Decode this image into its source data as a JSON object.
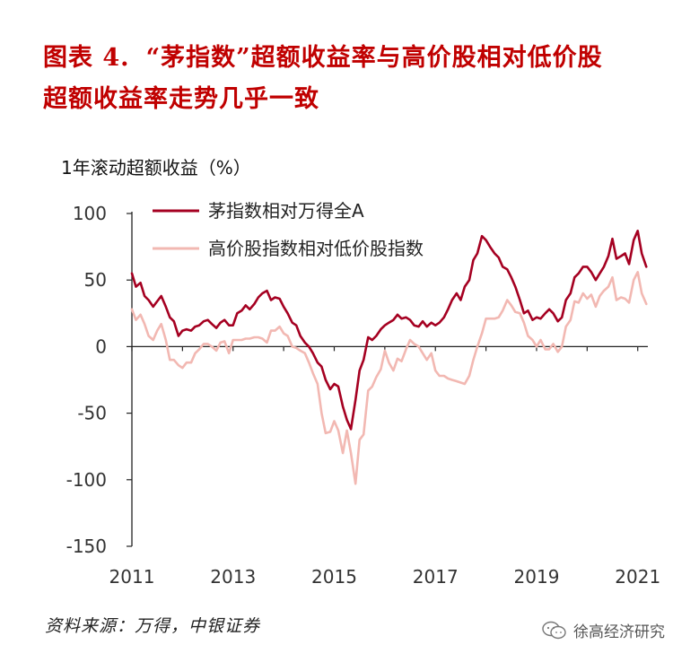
{
  "title": {
    "figure_no": "图表 4.",
    "line1": "“茅指数”超额收益率与高价股相对低价股",
    "line2": "超额收益率走势几乎一致"
  },
  "footer": {
    "source": "资料来源：万得，中银证券",
    "watermark": "徐高经济研究",
    "watermark_icon": "wechat-icon"
  },
  "chart_data": {
    "type": "line",
    "ylabel": "1年滚动超额收益（%）",
    "ylim": [
      -150,
      100
    ],
    "yticks": [
      100,
      50,
      0,
      -50,
      -100,
      -150
    ],
    "xlim": [
      2011,
      2021.2
    ],
    "xticks": [
      2011,
      2013,
      2015,
      2017,
      2019,
      2021
    ],
    "grid": false,
    "legend_position": "top-left",
    "series": [
      {
        "name": "茅指数相对万得全A",
        "color": "#a50021",
        "points": [
          [
            2011.0,
            55
          ],
          [
            2011.08,
            45
          ],
          [
            2011.17,
            48
          ],
          [
            2011.25,
            38
          ],
          [
            2011.33,
            35
          ],
          [
            2011.42,
            30
          ],
          [
            2011.5,
            34
          ],
          [
            2011.58,
            38
          ],
          [
            2011.67,
            30
          ],
          [
            2011.75,
            22
          ],
          [
            2011.83,
            19
          ],
          [
            2011.92,
            8
          ],
          [
            2012.0,
            12
          ],
          [
            2012.08,
            13
          ],
          [
            2012.17,
            12
          ],
          [
            2012.25,
            15
          ],
          [
            2012.33,
            16
          ],
          [
            2012.42,
            19
          ],
          [
            2012.5,
            20
          ],
          [
            2012.58,
            17
          ],
          [
            2012.67,
            14
          ],
          [
            2012.75,
            18
          ],
          [
            2012.83,
            20
          ],
          [
            2012.92,
            16
          ],
          [
            2013.0,
            16
          ],
          [
            2013.08,
            25
          ],
          [
            2013.17,
            27
          ],
          [
            2013.25,
            31
          ],
          [
            2013.33,
            28
          ],
          [
            2013.42,
            32
          ],
          [
            2013.5,
            37
          ],
          [
            2013.58,
            40
          ],
          [
            2013.67,
            42
          ],
          [
            2013.75,
            35
          ],
          [
            2013.83,
            37
          ],
          [
            2013.92,
            36
          ],
          [
            2014.0,
            30
          ],
          [
            2014.08,
            25
          ],
          [
            2014.17,
            18
          ],
          [
            2014.25,
            16
          ],
          [
            2014.33,
            8
          ],
          [
            2014.42,
            3
          ],
          [
            2014.5,
            0
          ],
          [
            2014.58,
            -5
          ],
          [
            2014.67,
            -12
          ],
          [
            2014.75,
            -15
          ],
          [
            2014.83,
            -25
          ],
          [
            2014.92,
            -32
          ],
          [
            2015.0,
            -28
          ],
          [
            2015.08,
            -30
          ],
          [
            2015.17,
            -45
          ],
          [
            2015.25,
            -55
          ],
          [
            2015.33,
            -62
          ],
          [
            2015.42,
            -40
          ],
          [
            2015.5,
            -18
          ],
          [
            2015.58,
            -10
          ],
          [
            2015.67,
            7
          ],
          [
            2015.75,
            5
          ],
          [
            2015.83,
            8
          ],
          [
            2015.92,
            13
          ],
          [
            2016.0,
            16
          ],
          [
            2016.08,
            18
          ],
          [
            2016.17,
            20
          ],
          [
            2016.25,
            24
          ],
          [
            2016.33,
            21
          ],
          [
            2016.42,
            22
          ],
          [
            2016.5,
            20
          ],
          [
            2016.58,
            16
          ],
          [
            2016.67,
            15
          ],
          [
            2016.75,
            19
          ],
          [
            2016.83,
            15
          ],
          [
            2016.92,
            18
          ],
          [
            2017.0,
            16
          ],
          [
            2017.08,
            18
          ],
          [
            2017.17,
            22
          ],
          [
            2017.25,
            28
          ],
          [
            2017.33,
            35
          ],
          [
            2017.42,
            40
          ],
          [
            2017.5,
            35
          ],
          [
            2017.58,
            45
          ],
          [
            2017.67,
            50
          ],
          [
            2017.75,
            65
          ],
          [
            2017.83,
            70
          ],
          [
            2017.92,
            83
          ],
          [
            2018.0,
            80
          ],
          [
            2018.08,
            75
          ],
          [
            2018.17,
            70
          ],
          [
            2018.25,
            67
          ],
          [
            2018.33,
            60
          ],
          [
            2018.42,
            58
          ],
          [
            2018.5,
            52
          ],
          [
            2018.58,
            45
          ],
          [
            2018.67,
            35
          ],
          [
            2018.75,
            25
          ],
          [
            2018.83,
            27
          ],
          [
            2018.92,
            20
          ],
          [
            2019.0,
            22
          ],
          [
            2019.08,
            21
          ],
          [
            2019.17,
            25
          ],
          [
            2019.25,
            28
          ],
          [
            2019.33,
            25
          ],
          [
            2019.42,
            19
          ],
          [
            2019.5,
            22
          ],
          [
            2019.58,
            35
          ],
          [
            2019.67,
            40
          ],
          [
            2019.75,
            52
          ],
          [
            2019.83,
            55
          ],
          [
            2019.92,
            60
          ],
          [
            2020.0,
            60
          ],
          [
            2020.08,
            56
          ],
          [
            2020.17,
            50
          ],
          [
            2020.25,
            55
          ],
          [
            2020.33,
            60
          ],
          [
            2020.42,
            68
          ],
          [
            2020.5,
            81
          ],
          [
            2020.58,
            66
          ],
          [
            2020.67,
            68
          ],
          [
            2020.75,
            70
          ],
          [
            2020.83,
            62
          ],
          [
            2020.92,
            80
          ],
          [
            2021.0,
            87
          ],
          [
            2021.08,
            70
          ],
          [
            2021.17,
            60
          ]
        ]
      },
      {
        "name": "高价股指数相对低价股指数",
        "color": "#f2b8b2",
        "points": [
          [
            2011.0,
            28
          ],
          [
            2011.08,
            20
          ],
          [
            2011.17,
            24
          ],
          [
            2011.25,
            17
          ],
          [
            2011.33,
            8
          ],
          [
            2011.42,
            5
          ],
          [
            2011.5,
            12
          ],
          [
            2011.58,
            17
          ],
          [
            2011.67,
            5
          ],
          [
            2011.75,
            -10
          ],
          [
            2011.83,
            -10
          ],
          [
            2011.92,
            -14
          ],
          [
            2012.0,
            -16
          ],
          [
            2012.08,
            -12
          ],
          [
            2012.17,
            -12
          ],
          [
            2012.25,
            -5
          ],
          [
            2012.33,
            -2
          ],
          [
            2012.42,
            2
          ],
          [
            2012.5,
            2
          ],
          [
            2012.58,
            0
          ],
          [
            2012.67,
            -3
          ],
          [
            2012.75,
            3
          ],
          [
            2012.83,
            4
          ],
          [
            2012.92,
            -5
          ],
          [
            2013.0,
            5
          ],
          [
            2013.08,
            5
          ],
          [
            2013.17,
            5
          ],
          [
            2013.25,
            6
          ],
          [
            2013.33,
            6
          ],
          [
            2013.42,
            7
          ],
          [
            2013.5,
            7
          ],
          [
            2013.58,
            6
          ],
          [
            2013.67,
            3
          ],
          [
            2013.75,
            12
          ],
          [
            2013.83,
            12
          ],
          [
            2013.92,
            15
          ],
          [
            2014.0,
            10
          ],
          [
            2014.08,
            8
          ],
          [
            2014.17,
            0
          ],
          [
            2014.25,
            -1
          ],
          [
            2014.33,
            -3
          ],
          [
            2014.42,
            -5
          ],
          [
            2014.5,
            -12
          ],
          [
            2014.58,
            -20
          ],
          [
            2014.67,
            -28
          ],
          [
            2014.75,
            -50
          ],
          [
            2014.83,
            -65
          ],
          [
            2014.92,
            -64
          ],
          [
            2015.0,
            -56
          ],
          [
            2015.08,
            -63
          ],
          [
            2015.17,
            -80
          ],
          [
            2015.25,
            -63
          ],
          [
            2015.33,
            -80
          ],
          [
            2015.42,
            -103
          ],
          [
            2015.5,
            -70
          ],
          [
            2015.58,
            -66
          ],
          [
            2015.67,
            -33
          ],
          [
            2015.75,
            -30
          ],
          [
            2015.83,
            -23
          ],
          [
            2015.92,
            -17
          ],
          [
            2016.0,
            -3
          ],
          [
            2016.08,
            -12
          ],
          [
            2016.17,
            -18
          ],
          [
            2016.25,
            -9
          ],
          [
            2016.33,
            -11
          ],
          [
            2016.42,
            -2
          ],
          [
            2016.5,
            5
          ],
          [
            2016.58,
            2
          ],
          [
            2016.67,
            0
          ],
          [
            2016.75,
            -5
          ],
          [
            2016.83,
            -10
          ],
          [
            2016.92,
            -5
          ],
          [
            2017.0,
            -18
          ],
          [
            2017.08,
            -22
          ],
          [
            2017.17,
            -22
          ],
          [
            2017.25,
            -24
          ],
          [
            2017.33,
            -25
          ],
          [
            2017.42,
            -26
          ],
          [
            2017.5,
            -27
          ],
          [
            2017.58,
            -28
          ],
          [
            2017.67,
            -22
          ],
          [
            2017.75,
            -10
          ],
          [
            2017.83,
            0
          ],
          [
            2017.92,
            10
          ],
          [
            2018.0,
            21
          ],
          [
            2018.08,
            21
          ],
          [
            2018.17,
            21
          ],
          [
            2018.25,
            22
          ],
          [
            2018.33,
            27
          ],
          [
            2018.42,
            35
          ],
          [
            2018.5,
            31
          ],
          [
            2018.58,
            26
          ],
          [
            2018.67,
            25
          ],
          [
            2018.75,
            18
          ],
          [
            2018.83,
            8
          ],
          [
            2018.92,
            5
          ],
          [
            2019.0,
            0
          ],
          [
            2019.08,
            5
          ],
          [
            2019.17,
            -2
          ],
          [
            2019.25,
            -2
          ],
          [
            2019.33,
            2
          ],
          [
            2019.42,
            -4
          ],
          [
            2019.5,
            0
          ],
          [
            2019.58,
            15
          ],
          [
            2019.67,
            20
          ],
          [
            2019.75,
            34
          ],
          [
            2019.83,
            33
          ],
          [
            2019.92,
            40
          ],
          [
            2020.0,
            36
          ],
          [
            2020.08,
            39
          ],
          [
            2020.17,
            30
          ],
          [
            2020.25,
            38
          ],
          [
            2020.33,
            42
          ],
          [
            2020.42,
            45
          ],
          [
            2020.5,
            52
          ],
          [
            2020.58,
            35
          ],
          [
            2020.67,
            37
          ],
          [
            2020.75,
            36
          ],
          [
            2020.83,
            33
          ],
          [
            2020.92,
            50
          ],
          [
            2021.0,
            56
          ],
          [
            2021.08,
            40
          ],
          [
            2021.17,
            32
          ]
        ]
      }
    ]
  }
}
